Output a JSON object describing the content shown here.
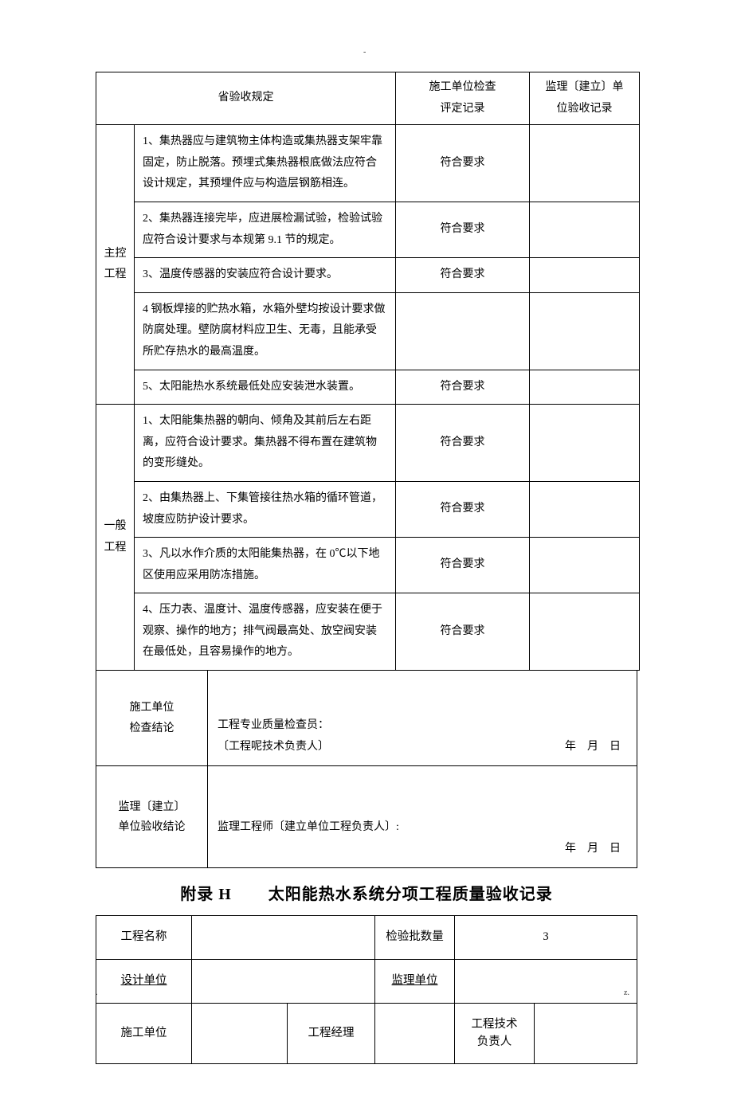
{
  "table1": {
    "header": {
      "col1": "省验收规定",
      "col2_line1": "施工单位检查",
      "col2_line2": "评定记录",
      "col3_line1": "监理〔建立〕单",
      "col3_line2": "位验收记录"
    },
    "group_a_label": "主控工程",
    "group_a": [
      {
        "desc": "1、集热器应与建筑物主体构造或集热器支架牢靠固定，防止脱落。预埋式集热器根底做法应符合设计规定，其预埋件应与构造层钢筋相连。",
        "result": "符合要求"
      },
      {
        "desc": "2、集热器连接完毕，应进展检漏试验，检验试验应符合设计要求与本规第 9.1 节的规定。",
        "result": "符合要求"
      },
      {
        "desc": "3、温度传感器的安装应符合设计要求。",
        "result": "符合要求"
      },
      {
        "desc": "4 钢板焊接的贮热水箱，水箱外壁均按设计要求做防腐处理。壁防腐材料应卫生、无毒，且能承受所贮存热水的最高温度。",
        "result": ""
      },
      {
        "desc": "5、太阳能热水系统最低处应安装泄水装置。",
        "result": "符合要求"
      }
    ],
    "group_b_label": "一般工程",
    "group_b": [
      {
        "desc": "1、太阳能集热器的朝向、倾角及其前后左右距离，应符合设计要求。集热器不得布置在建筑物的变形缝处。",
        "result": "符合要求"
      },
      {
        "desc": "2、由集热器上、下集管接往热水箱的循环管道，坡度应防护设计要求。",
        "result": "符合要求"
      },
      {
        "desc": "3、凡以水作介质的太阳能集热器，在 0℃以下地区使用应采用防冻措施。",
        "result": "符合要求"
      },
      {
        "desc": "4、压力表、温度计、温度传感器，应安装在便于观察、操作的地方；排气阀最高处、放空阀安装在最低处，且容易操作的地方。",
        "result": "符合要求"
      }
    ],
    "conclusion_a": {
      "label_l1": "施工单位",
      "label_l2": "检查结论",
      "line1": "工程专业质量检查员：",
      "line2": "〔工程呢技术负责人〕",
      "date": "年 月 日"
    },
    "conclusion_b": {
      "label_l1": "监理〔建立〕",
      "label_l2": "单位验收结论",
      "line1": "监理工程师〔建立单位工程负责人〕:",
      "date": "年 月 日"
    }
  },
  "appendix": {
    "label": "附录 H",
    "title": "太阳能热水系统分项工程质量验收记录"
  },
  "table2": {
    "r1c1": "工程名称",
    "r1c3": "检验批数量",
    "r1c4": "3",
    "r2c1": "设计单位",
    "r2c3": "监理单位",
    "r3c1": "施工单位",
    "r3c3": "工程经理",
    "r3c5_l1": "工程技术",
    "r3c5_l2": "负责人"
  },
  "footer": {
    "left": ".",
    "right": "z."
  }
}
